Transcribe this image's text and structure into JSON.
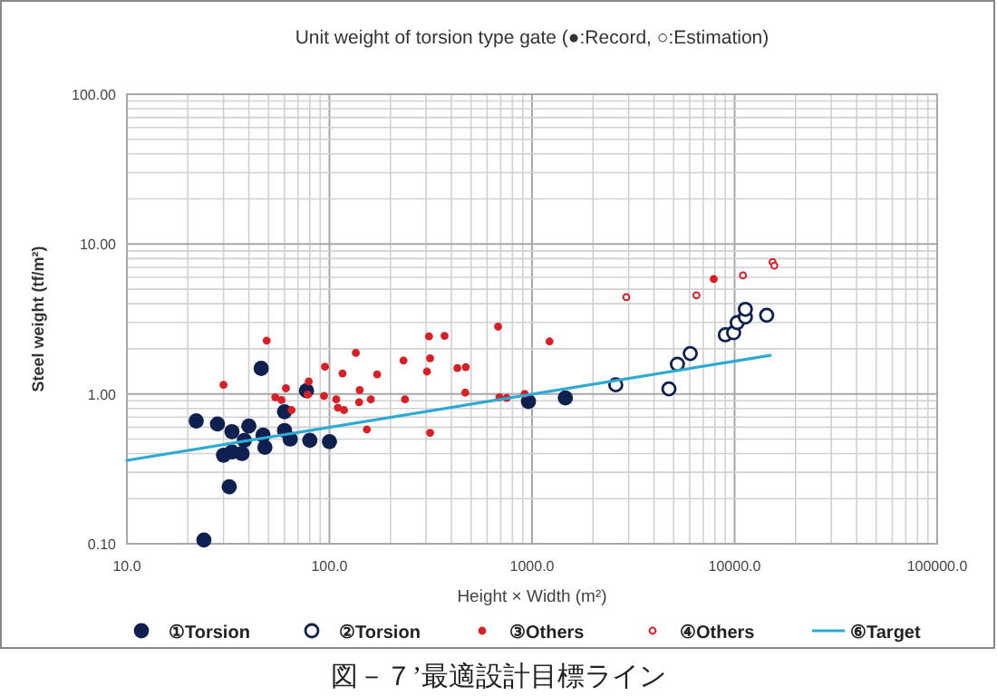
{
  "chart_data": {
    "type": "scatter",
    "title": "Unit weight of torsion type gate (●:Record, ○:Estimation)",
    "xlabel": "Height × Width (m²)",
    "ylabel": "Steel weight (tf/m²)",
    "log": "xy",
    "xlim": [
      10,
      100000
    ],
    "ylim": [
      0.1,
      100
    ],
    "xticks": [
      {
        "value": 10,
        "label": "10.0"
      },
      {
        "value": 100,
        "label": "100.0"
      },
      {
        "value": 1000,
        "label": "1000.0"
      },
      {
        "value": 10000,
        "label": "10000.0"
      },
      {
        "value": 100000,
        "label": "100000.0"
      }
    ],
    "yticks": [
      {
        "value": 0.1,
        "label": "0.10"
      },
      {
        "value": 1,
        "label": "1.00"
      },
      {
        "value": 10,
        "label": "10.00"
      },
      {
        "value": 100,
        "label": "100.00"
      }
    ],
    "grid": true,
    "legend": "bottom",
    "series": [
      {
        "name": "①Torsion",
        "color": "#0d2050",
        "marker": "circle",
        "x": [
          22,
          28,
          33,
          40,
          38,
          30,
          33,
          37,
          32,
          24,
          46,
          47,
          48,
          60,
          60,
          64,
          77,
          80,
          100,
          960,
          1460
        ],
        "values": [
          0.66,
          0.63,
          0.56,
          0.61,
          0.49,
          0.39,
          0.41,
          0.4,
          0.24,
          0.106,
          1.48,
          0.53,
          0.44,
          0.76,
          0.57,
          0.5,
          1.05,
          0.49,
          0.48,
          0.89,
          0.94
        ]
      },
      {
        "name": "②Torsion",
        "color": "#0d2050",
        "marker": "circle",
        "x": [
          2590,
          4740,
          5220,
          6040,
          9000,
          9890,
          10300,
          11300,
          11300,
          14400
        ],
        "values": [
          1.15,
          1.08,
          1.58,
          1.86,
          2.48,
          2.56,
          2.99,
          3.26,
          3.67,
          3.35
        ]
      },
      {
        "name": "③Others",
        "color": "#d81f26",
        "marker": "circle",
        "x": [
          30,
          49,
          54,
          58,
          61,
          65,
          78,
          79,
          95,
          94,
          108,
          110,
          118,
          116,
          135,
          141,
          140,
          153,
          160,
          172,
          232,
          236,
          310,
          314,
          303,
          314,
          370,
          428,
          471,
          468,
          680,
          690,
          750,
          920,
          1220,
          7890
        ],
        "values": [
          1.15,
          2.27,
          0.95,
          0.91,
          1.09,
          0.78,
          0.99,
          1.21,
          1.52,
          0.97,
          0.92,
          0.81,
          0.78,
          1.37,
          1.88,
          1.06,
          0.88,
          0.58,
          0.92,
          1.35,
          1.67,
          0.92,
          2.42,
          1.73,
          1.41,
          0.55,
          2.44,
          1.49,
          1.51,
          1.02,
          2.81,
          0.95,
          0.94,
          1.0,
          2.24,
          5.85
        ]
      },
      {
        "name": "④Others",
        "color": "#d81f26",
        "marker": "circle",
        "x": [
          2920,
          6480,
          11000,
          15400,
          15700
        ],
        "values": [
          4.42,
          4.55,
          6.18,
          7.58,
          7.17
        ]
      },
      {
        "name": "⑥Target",
        "type": "line",
        "color": "#2ea9d3",
        "x": [
          10,
          15000
        ],
        "values": [
          0.36,
          1.81
        ]
      }
    ],
    "annotations": [
      "図－７’最適設計目標ライン"
    ]
  }
}
